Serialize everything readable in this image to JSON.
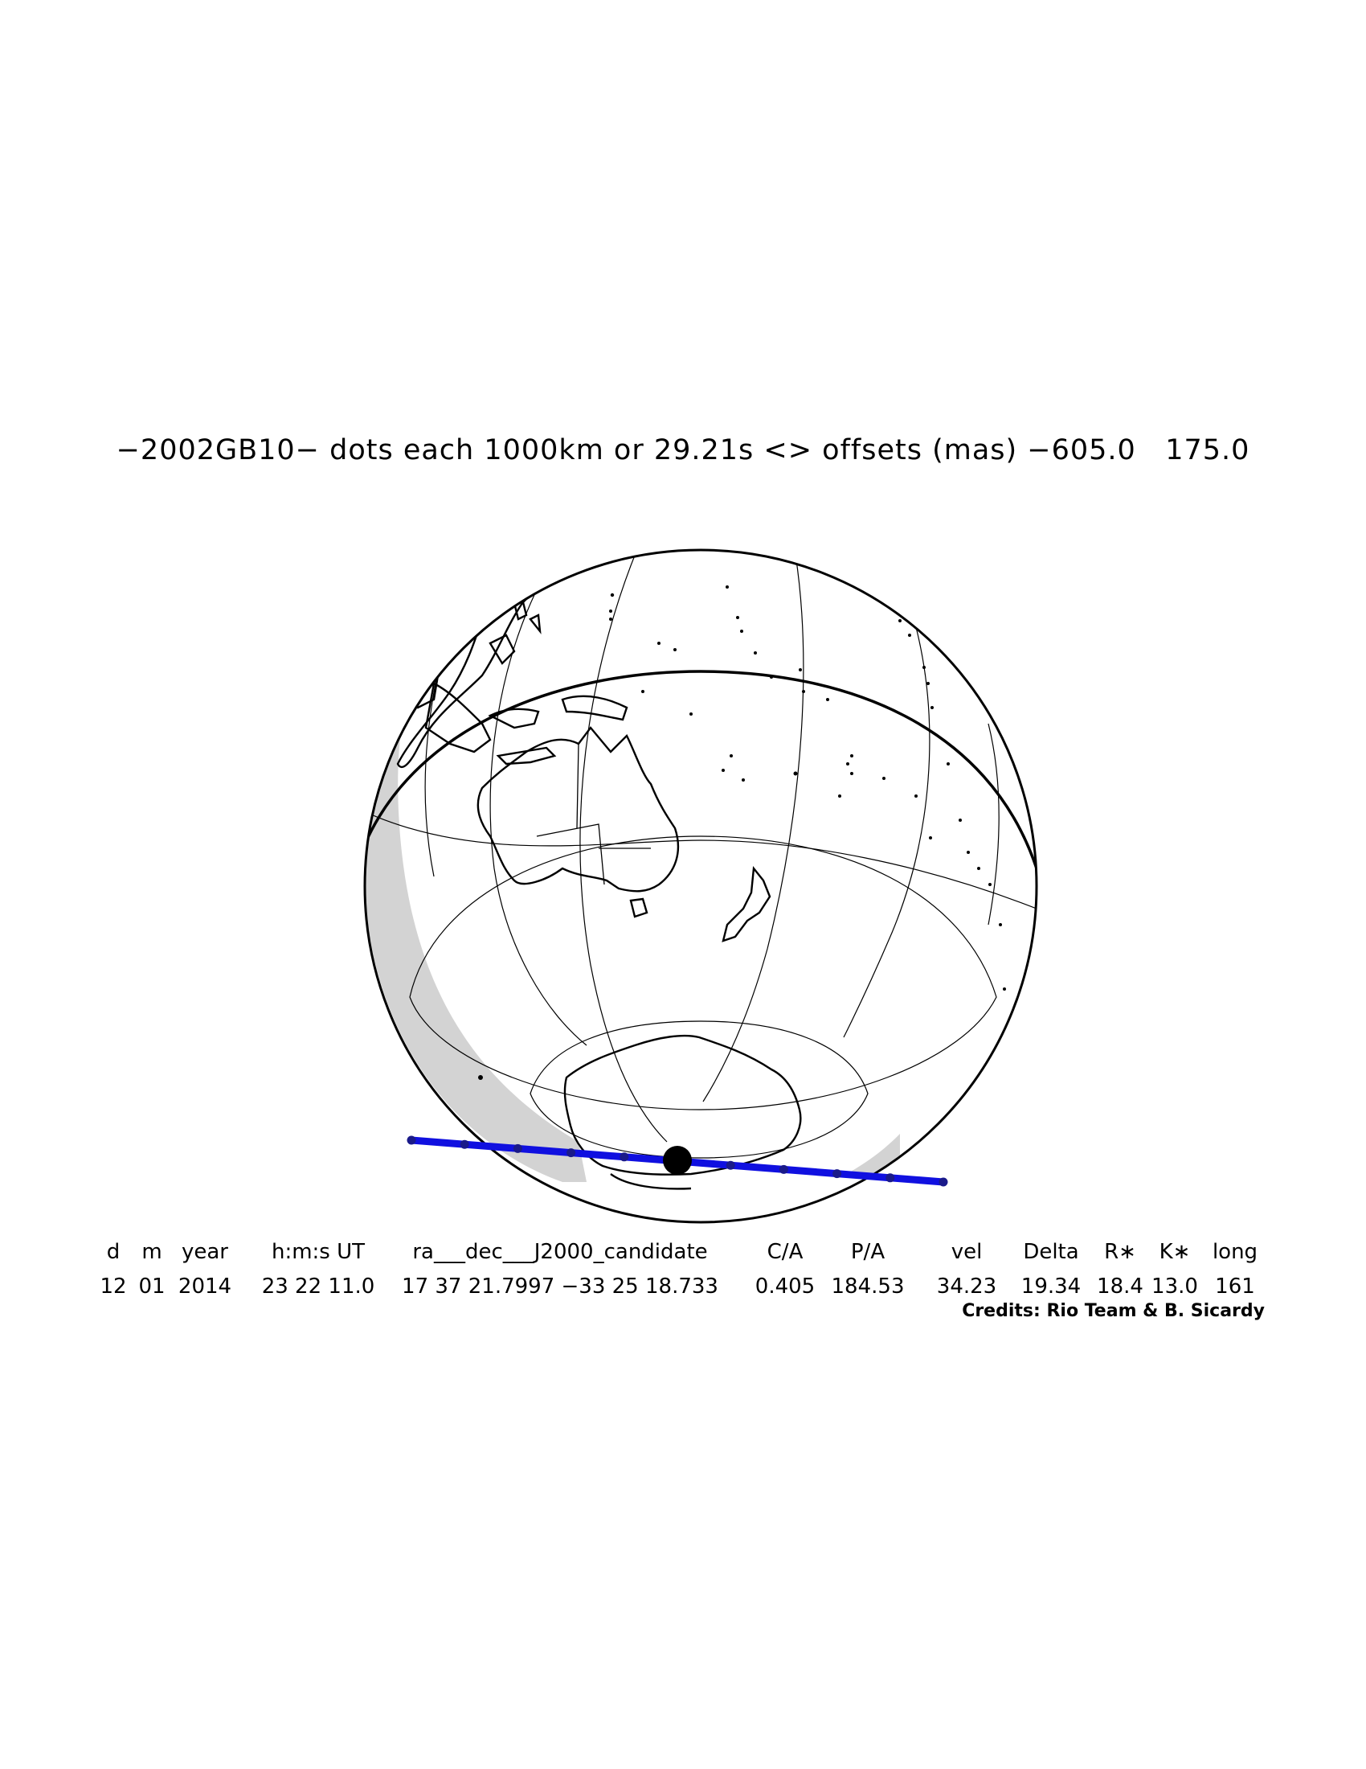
{
  "title": "−2002GB10− dots each 1000km or 29.21s <> offsets (mas) −605.0   175.0",
  "table": {
    "headers": [
      "d",
      "m",
      "year",
      "h:m:s UT",
      "ra___dec___J2000_candidate",
      "C/A",
      "P/A",
      "vel",
      "Delta",
      "R∗",
      "K∗",
      "long"
    ],
    "values": [
      "12",
      "01",
      "2014",
      "23 22 11.0",
      "17 37 21.7997 −33 25 18.733",
      "0.405",
      "184.53",
      "34.23",
      "19.34",
      "18.4",
      "13.0",
      "161"
    ]
  },
  "credits": "Credits: Rio Team & B. Sicardy",
  "colors": {
    "path": "#1010e0",
    "night_shade": "#d3d3d3",
    "coast": "#000000",
    "grid": "#000000"
  }
}
